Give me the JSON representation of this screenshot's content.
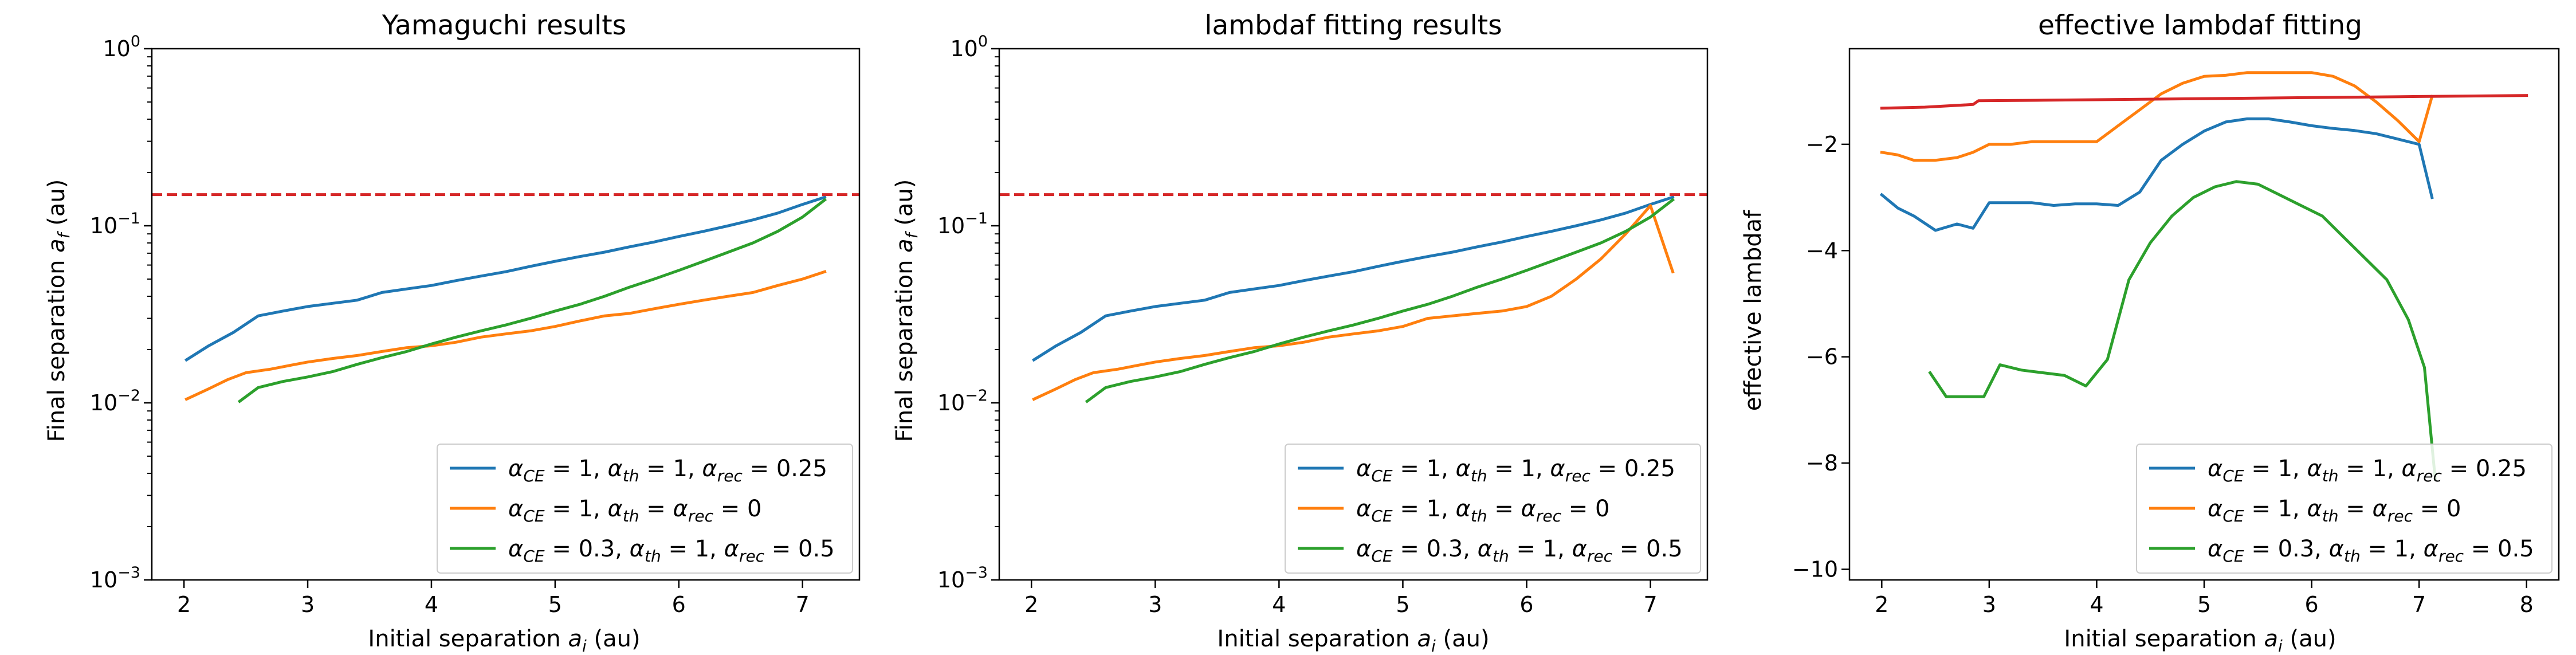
{
  "colors": {
    "blue": "#1f77b4",
    "orange": "#ff7f0e",
    "green": "#2ca02c",
    "red": "#d62728"
  },
  "legend_entries": [
    "α_CE = 1, α_th = 1, α_rec = 0.25",
    "α_CE = 1, α_th = α_rec = 0",
    "α_CE = 0.3, α_th = 1, α_rec = 0.5"
  ],
  "chart_data": [
    {
      "type": "line",
      "title": "Yamaguchi results",
      "xlabel": "Initial separation a_i (au)",
      "ylabel": "Final separation a_f (au)",
      "yscale": "log",
      "xlim": [
        1.74,
        7.46
      ],
      "ylim": [
        0.001,
        1
      ],
      "xticks": [
        2,
        3,
        4,
        5,
        6,
        7
      ],
      "xtick_labels": [
        "2",
        "3",
        "4",
        "5",
        "6",
        "7"
      ],
      "yticks": [
        0.001,
        0.01,
        0.1,
        1
      ],
      "ytick_labels": [
        "10^-3",
        "10^-2",
        "10^-1",
        "10^0"
      ],
      "grid": false,
      "legend_position": "lower-right",
      "hline": {
        "y": 0.15,
        "style": "dashed",
        "color": "#d62728"
      },
      "series": [
        {
          "name": "α_CE = 1, α_th = 1, α_rec = 0.25",
          "color": "#1f77b4",
          "x": [
            2.02,
            2.2,
            2.4,
            2.6,
            2.8,
            3.0,
            3.2,
            3.4,
            3.6,
            3.8,
            4.0,
            4.2,
            4.4,
            4.6,
            4.8,
            5.0,
            5.2,
            5.4,
            5.6,
            5.8,
            6.0,
            6.2,
            6.4,
            6.6,
            6.8,
            7.0,
            7.18
          ],
          "y": [
            0.0175,
            0.021,
            0.025,
            0.031,
            0.033,
            0.035,
            0.0365,
            0.038,
            0.042,
            0.044,
            0.046,
            0.049,
            0.052,
            0.055,
            0.059,
            0.063,
            0.067,
            0.071,
            0.076,
            0.081,
            0.087,
            0.093,
            0.1,
            0.108,
            0.118,
            0.132,
            0.145
          ]
        },
        {
          "name": "α_CE = 1, α_th = α_rec = 0",
          "color": "#ff7f0e",
          "x": [
            2.02,
            2.2,
            2.35,
            2.5,
            2.7,
            2.9,
            3.0,
            3.2,
            3.4,
            3.6,
            3.8,
            4.0,
            4.2,
            4.4,
            4.6,
            4.8,
            5.0,
            5.2,
            5.4,
            5.6,
            5.8,
            6.0,
            6.2,
            6.4,
            6.6,
            6.8,
            7.0,
            7.18
          ],
          "y": [
            0.0105,
            0.012,
            0.0135,
            0.0148,
            0.0155,
            0.0165,
            0.017,
            0.0178,
            0.0185,
            0.0195,
            0.0205,
            0.021,
            0.022,
            0.0235,
            0.0245,
            0.0255,
            0.027,
            0.029,
            0.031,
            0.032,
            0.034,
            0.036,
            0.038,
            0.04,
            0.042,
            0.046,
            0.05,
            0.055
          ]
        },
        {
          "name": "α_CE = 0.3, α_th = 1, α_rec = 0.5",
          "color": "#2ca02c",
          "x": [
            2.45,
            2.6,
            2.8,
            3.0,
            3.2,
            3.4,
            3.6,
            3.8,
            4.0,
            4.2,
            4.4,
            4.6,
            4.8,
            5.0,
            5.2,
            5.4,
            5.6,
            5.8,
            6.0,
            6.2,
            6.4,
            6.6,
            6.8,
            7.0,
            7.18
          ],
          "y": [
            0.0102,
            0.0122,
            0.0132,
            0.014,
            0.015,
            0.0165,
            0.018,
            0.0195,
            0.0215,
            0.0235,
            0.0255,
            0.0275,
            0.03,
            0.033,
            0.036,
            0.04,
            0.045,
            0.05,
            0.056,
            0.063,
            0.071,
            0.08,
            0.093,
            0.112,
            0.14
          ]
        }
      ]
    },
    {
      "type": "line",
      "title": "lambdaf fitting results",
      "xlabel": "Initial separation a_i (au)",
      "ylabel": "Final separation a_f (au)",
      "yscale": "log",
      "xlim": [
        1.74,
        7.46
      ],
      "ylim": [
        0.001,
        1
      ],
      "xticks": [
        2,
        3,
        4,
        5,
        6,
        7
      ],
      "xtick_labels": [
        "2",
        "3",
        "4",
        "5",
        "6",
        "7"
      ],
      "yticks": [
        0.001,
        0.01,
        0.1,
        1
      ],
      "ytick_labels": [
        "10^-3",
        "10^-2",
        "10^-1",
        "10^0"
      ],
      "grid": false,
      "legend_position": "lower-right",
      "hline": {
        "y": 0.15,
        "style": "dashed",
        "color": "#d62728"
      },
      "series": [
        {
          "name": "α_CE = 1, α_th = 1, α_rec = 0.25",
          "color": "#1f77b4",
          "x": [
            2.02,
            2.2,
            2.4,
            2.6,
            2.8,
            3.0,
            3.2,
            3.4,
            3.6,
            3.8,
            4.0,
            4.2,
            4.4,
            4.6,
            4.8,
            5.0,
            5.2,
            5.4,
            5.6,
            5.8,
            6.0,
            6.2,
            6.4,
            6.6,
            6.8,
            7.0,
            7.18
          ],
          "y": [
            0.0175,
            0.021,
            0.025,
            0.031,
            0.033,
            0.035,
            0.0365,
            0.038,
            0.042,
            0.044,
            0.046,
            0.049,
            0.052,
            0.055,
            0.059,
            0.063,
            0.067,
            0.071,
            0.076,
            0.081,
            0.087,
            0.093,
            0.1,
            0.108,
            0.118,
            0.132,
            0.145
          ]
        },
        {
          "name": "α_CE = 1, α_th = α_rec = 0",
          "color": "#ff7f0e",
          "x": [
            2.02,
            2.2,
            2.35,
            2.5,
            2.7,
            2.9,
            3.0,
            3.2,
            3.4,
            3.6,
            3.8,
            4.0,
            4.2,
            4.4,
            4.6,
            4.8,
            5.0,
            5.2,
            5.4,
            5.6,
            5.8,
            6.0,
            6.2,
            6.4,
            6.6,
            6.8,
            7.0,
            7.18
          ],
          "y": [
            0.0105,
            0.012,
            0.0135,
            0.0148,
            0.0155,
            0.0165,
            0.017,
            0.0178,
            0.0185,
            0.0195,
            0.0205,
            0.021,
            0.022,
            0.0235,
            0.0245,
            0.0255,
            0.027,
            0.03,
            0.031,
            0.032,
            0.033,
            0.035,
            0.04,
            0.05,
            0.065,
            0.09,
            0.13,
            0.055
          ]
        },
        {
          "name": "α_CE = 0.3, α_th = 1, α_rec = 0.5",
          "color": "#2ca02c",
          "x": [
            2.45,
            2.6,
            2.8,
            3.0,
            3.2,
            3.4,
            3.6,
            3.8,
            4.0,
            4.2,
            4.4,
            4.6,
            4.8,
            5.0,
            5.2,
            5.4,
            5.6,
            5.8,
            6.0,
            6.2,
            6.4,
            6.6,
            6.8,
            7.0,
            7.18
          ],
          "y": [
            0.0102,
            0.0122,
            0.0132,
            0.014,
            0.015,
            0.0165,
            0.018,
            0.0195,
            0.0215,
            0.0235,
            0.0255,
            0.0275,
            0.03,
            0.033,
            0.036,
            0.04,
            0.045,
            0.05,
            0.056,
            0.063,
            0.071,
            0.08,
            0.093,
            0.112,
            0.14
          ]
        }
      ]
    },
    {
      "type": "line",
      "title": "effective lambdaf fitting",
      "xlabel": "Initial separation a_i (au)",
      "ylabel": "effective lambdaf",
      "yscale": "linear",
      "xlim": [
        1.7,
        8.3
      ],
      "ylim": [
        -10.2,
        -0.2
      ],
      "xticks": [
        2,
        3,
        4,
        5,
        6,
        7,
        8
      ],
      "xtick_labels": [
        "2",
        "3",
        "4",
        "5",
        "6",
        "7",
        "8"
      ],
      "yticks": [
        -10,
        -8,
        -6,
        -4,
        -2
      ],
      "ytick_labels": [
        "−10",
        "−8",
        "−6",
        "−4",
        "−2"
      ],
      "grid": false,
      "legend_position": "lower-right",
      "series": [
        {
          "name": "α_CE = 1, α_th = 1, α_rec = 0.25",
          "color": "#1f77b4",
          "x": [
            2.0,
            2.15,
            2.3,
            2.5,
            2.7,
            2.85,
            3.0,
            3.2,
            3.4,
            3.6,
            3.8,
            4.0,
            4.2,
            4.4,
            4.6,
            4.8,
            5.0,
            5.2,
            5.4,
            5.6,
            5.8,
            6.0,
            6.2,
            6.4,
            6.6,
            6.8,
            7.0,
            7.12
          ],
          "y": [
            -2.95,
            -3.2,
            -3.35,
            -3.62,
            -3.5,
            -3.58,
            -3.1,
            -3.1,
            -3.1,
            -3.15,
            -3.12,
            -3.12,
            -3.15,
            -2.9,
            -2.3,
            -2.0,
            -1.75,
            -1.58,
            -1.52,
            -1.52,
            -1.58,
            -1.65,
            -1.7,
            -1.74,
            -1.8,
            -1.9,
            -2.0,
            -3.0
          ]
        },
        {
          "name": "α_CE = 1, α_th = α_rec = 0",
          "color": "#ff7f0e",
          "x": [
            2.0,
            2.15,
            2.3,
            2.5,
            2.7,
            2.85,
            3.0,
            3.2,
            3.4,
            3.6,
            3.8,
            4.0,
            4.2,
            4.4,
            4.6,
            4.8,
            5.0,
            5.2,
            5.4,
            5.6,
            5.8,
            6.0,
            6.2,
            6.4,
            6.6,
            6.8,
            7.0,
            7.12
          ],
          "y": [
            -2.15,
            -2.2,
            -2.3,
            -2.3,
            -2.25,
            -2.15,
            -2.0,
            -2.0,
            -1.95,
            -1.95,
            -1.95,
            -1.95,
            -1.65,
            -1.35,
            -1.05,
            -0.85,
            -0.72,
            -0.7,
            -0.65,
            -0.65,
            -0.65,
            -0.65,
            -0.72,
            -0.9,
            -1.2,
            -1.55,
            -1.95,
            -1.1
          ]
        },
        {
          "name": "α_CE = 0.3, α_th = 1, α_rec = 0.5",
          "color": "#2ca02c",
          "x": [
            2.45,
            2.6,
            2.8,
            2.95,
            3.1,
            3.3,
            3.5,
            3.7,
            3.9,
            4.1,
            4.3,
            4.5,
            4.7,
            4.9,
            5.1,
            5.3,
            5.5,
            5.7,
            5.9,
            6.1,
            6.3,
            6.5,
            6.7,
            6.9,
            7.05,
            7.15
          ],
          "y": [
            -6.3,
            -6.75,
            -6.75,
            -6.75,
            -6.15,
            -6.25,
            -6.3,
            -6.35,
            -6.55,
            -6.05,
            -4.55,
            -3.85,
            -3.35,
            -3.0,
            -2.8,
            -2.7,
            -2.75,
            -2.95,
            -3.15,
            -3.35,
            -3.75,
            -4.15,
            -4.55,
            -5.3,
            -6.2,
            -8.3
          ]
        },
        {
          "name": "",
          "color": "#d62728",
          "x": [
            2.0,
            2.4,
            2.85,
            2.9,
            3.5,
            4.0,
            5.0,
            6.0,
            7.0,
            8.0
          ],
          "y": [
            -1.32,
            -1.3,
            -1.25,
            -1.18,
            -1.17,
            -1.16,
            -1.14,
            -1.12,
            -1.1,
            -1.08
          ]
        }
      ]
    }
  ]
}
